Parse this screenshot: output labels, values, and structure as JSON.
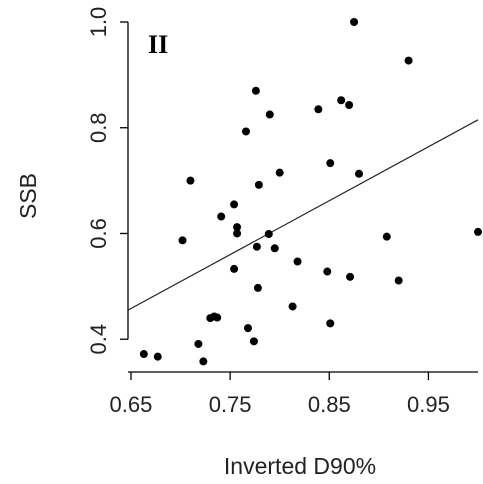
{
  "chart_data": {
    "type": "scatter",
    "panel_label": "II",
    "xlabel": "Inverted D90%",
    "ylabel": "SSB",
    "xlim": [
      0.647,
      1.0
    ],
    "ylim": [
      0.338,
      1.0
    ],
    "xticks": [
      0.65,
      0.75,
      0.85,
      0.95
    ],
    "xtick_labels": [
      "0.65",
      "0.75",
      "0.85",
      "0.95"
    ],
    "yticks": [
      0.4,
      0.6,
      0.8,
      1.0
    ],
    "ytick_labels": [
      "0.4",
      "0.6",
      "0.8",
      "1.0"
    ],
    "grid": false,
    "box": "left-bottom axes only",
    "points": [
      [
        0.663,
        0.372
      ],
      [
        0.677,
        0.367
      ],
      [
        0.702,
        0.587
      ],
      [
        0.71,
        0.7
      ],
      [
        0.718,
        0.391
      ],
      [
        0.723,
        0.358
      ],
      [
        0.73,
        0.44
      ],
      [
        0.734,
        0.443
      ],
      [
        0.737,
        0.441
      ],
      [
        0.741,
        0.632
      ],
      [
        0.754,
        0.655
      ],
      [
        0.754,
        0.533
      ],
      [
        0.757,
        0.6
      ],
      [
        0.757,
        0.612
      ],
      [
        0.766,
        0.793
      ],
      [
        0.768,
        0.421
      ],
      [
        0.774,
        0.396
      ],
      [
        0.776,
        0.87
      ],
      [
        0.777,
        0.575
      ],
      [
        0.778,
        0.497
      ],
      [
        0.779,
        0.692
      ],
      [
        0.789,
        0.599
      ],
      [
        0.79,
        0.825
      ],
      [
        0.795,
        0.572
      ],
      [
        0.8,
        0.715
      ],
      [
        0.813,
        0.462
      ],
      [
        0.818,
        0.547
      ],
      [
        0.839,
        0.835
      ],
      [
        0.848,
        0.528
      ],
      [
        0.851,
        0.733
      ],
      [
        0.851,
        0.43
      ],
      [
        0.862,
        0.852
      ],
      [
        0.87,
        0.843
      ],
      [
        0.871,
        0.518
      ],
      [
        0.875,
        1.0
      ],
      [
        0.88,
        0.713
      ],
      [
        0.908,
        0.594
      ],
      [
        0.92,
        0.511
      ],
      [
        0.93,
        0.927
      ],
      [
        1.0,
        0.603
      ]
    ],
    "fit_line": {
      "x": [
        0.647,
        1.0
      ],
      "y": [
        0.455,
        0.815
      ]
    },
    "colors": {
      "points": "#000000",
      "line": "#222222",
      "axes": "#000000"
    }
  }
}
